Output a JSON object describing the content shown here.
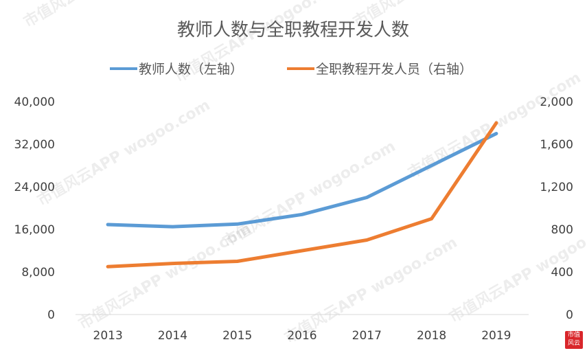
{
  "chart_data": {
    "type": "line",
    "title": "教师人数与全职教程开发人数",
    "categories": [
      "2013",
      "2014",
      "2015",
      "2016",
      "2017",
      "2018",
      "2019"
    ],
    "series": [
      {
        "name": "教师人数（左轴）",
        "axis": "left",
        "color": "#5b9bd5",
        "values": [
          16900,
          16500,
          17000,
          18800,
          22000,
          28000,
          34000
        ]
      },
      {
        "name": "全职教程开发人员（右轴）",
        "axis": "right",
        "color": "#ed7d31",
        "values": [
          450,
          480,
          500,
          600,
          700,
          900,
          1800
        ]
      }
    ],
    "left_axis": {
      "min": 0,
      "max": 40000,
      "ticks": [
        "40,000",
        "32,000",
        "24,000",
        "16,000",
        "8,000",
        "0"
      ],
      "tick_values": [
        40000,
        32000,
        24000,
        16000,
        8000,
        0
      ]
    },
    "right_axis": {
      "min": 0,
      "max": 2000,
      "ticks": [
        "2,000",
        "1,600",
        "1,200",
        "800",
        "400",
        "0"
      ],
      "tick_values": [
        2000,
        1600,
        1200,
        800,
        400,
        0
      ]
    },
    "legend_position": "top",
    "grid": false
  },
  "watermark": "市值风云APP  wogoo.com",
  "logo": {
    "line1": "市值",
    "line2": "风云",
    "color": "#d9262b"
  }
}
